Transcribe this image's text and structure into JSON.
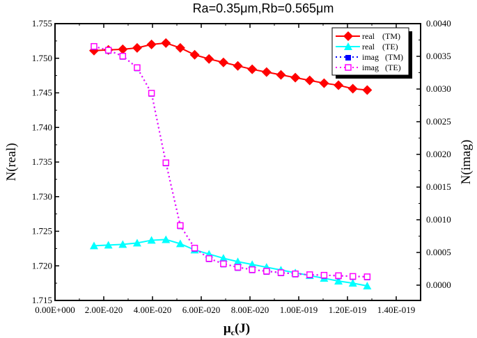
{
  "chart_data": {
    "type": "line",
    "title": "Ra=0.35μm,Rb=0.565μm",
    "xlabel": "μ",
    "xlabel_sub": "c",
    "xlabel_suffix": "(J)",
    "ylabel_left": "N(real)",
    "ylabel_right": "N(imag)",
    "xlim": [
      0,
      1.5e-19
    ],
    "ylim_left": [
      1.715,
      1.755
    ],
    "ylim_right": [
      -0.000234,
      0.004
    ],
    "xticks": [
      "0.00E+000",
      "2.00E-020",
      "4.00E-020",
      "6.00E-020",
      "8.00E-020",
      "1.00E-019",
      "1.20E-019",
      "1.40E-019"
    ],
    "xtick_values": [
      0,
      2e-20,
      4e-20,
      6e-20,
      8e-20,
      1e-19,
      1.2e-19,
      1.4e-19
    ],
    "yticks_left": [
      "1.715",
      "1.720",
      "1.725",
      "1.730",
      "1.735",
      "1.740",
      "1.745",
      "1.750",
      "1.755"
    ],
    "yticks_right": [
      "0.0000",
      "0.0005",
      "0.0010",
      "0.0015",
      "0.0020",
      "0.0025",
      "0.0030",
      "0.0035",
      "0.0040"
    ],
    "grid": false,
    "legend_position": "top-right",
    "x": [
      1.6e-20,
      2.19e-20,
      2.78e-20,
      3.37e-20,
      3.96e-20,
      4.55e-20,
      5.14e-20,
      5.73e-20,
      6.32e-20,
      6.91e-20,
      7.5e-20,
      8.09e-20,
      8.68e-20,
      9.27e-20,
      9.86e-20,
      1.045e-19,
      1.104e-19,
      1.163e-19,
      1.222e-19,
      1.281e-19
    ],
    "series": [
      {
        "name": "real",
        "mode": "(TM)",
        "axis": "left",
        "color": "#ff0000",
        "marker": "diamond",
        "line": "solid",
        "values": [
          1.7511,
          1.7512,
          1.7513,
          1.7515,
          1.752,
          1.7522,
          1.7515,
          1.7505,
          1.7499,
          1.7494,
          1.7489,
          1.7484,
          1.748,
          1.7476,
          1.7472,
          1.7468,
          1.7464,
          1.7461,
          1.7456,
          1.7454
        ]
      },
      {
        "name": "real",
        "mode": "(TE)",
        "axis": "left",
        "color": "#00ffff",
        "marker": "triangle",
        "line": "solid",
        "values": [
          1.7229,
          1.723,
          1.7231,
          1.7233,
          1.7237,
          1.7238,
          1.7232,
          1.7223,
          1.7217,
          1.7211,
          1.7206,
          1.7202,
          1.7198,
          1.7194,
          1.719,
          1.7186,
          1.7182,
          1.7178,
          1.7175,
          1.7171
        ]
      },
      {
        "name": "imag",
        "mode": "(TM)",
        "axis": "right",
        "color": "#0000ff",
        "marker": "square-filled",
        "line": "dotted",
        "values": [
          0.003652,
          0.003593,
          0.003503,
          0.003327,
          0.002936,
          0.001872,
          0.000912,
          0.000567,
          0.000407,
          0.000327,
          0.000273,
          0.000237,
          0.000213,
          0.000191,
          0.000173,
          0.00016,
          0.000152,
          0.000145,
          0.000134,
          0.000128
        ]
      },
      {
        "name": "imag",
        "mode": "(TE)",
        "axis": "right",
        "color": "#ff00ff",
        "marker": "square-open",
        "line": "dotted",
        "values": [
          0.003652,
          0.003593,
          0.003503,
          0.003327,
          0.002936,
          0.001872,
          0.000912,
          0.000567,
          0.000407,
          0.000327,
          0.000273,
          0.000237,
          0.000213,
          0.000191,
          0.000173,
          0.00016,
          0.000152,
          0.000145,
          0.000134,
          0.000128
        ]
      }
    ]
  }
}
